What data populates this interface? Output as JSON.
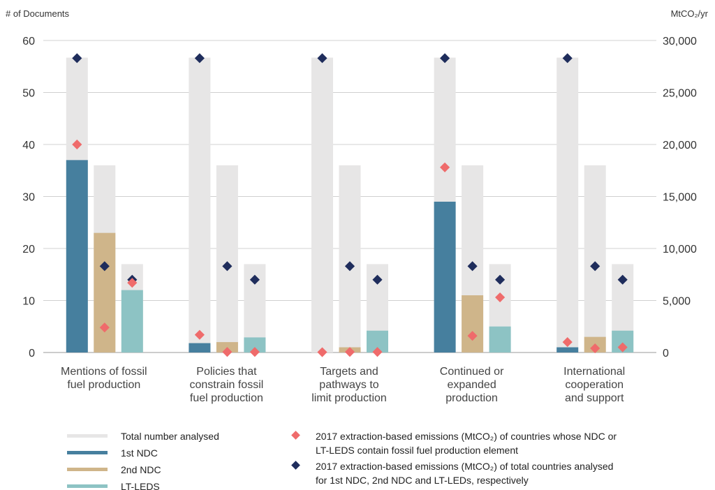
{
  "chart_data": {
    "type": "bar",
    "y_left_label": "# of Documents",
    "y_right_label": "MtCO₂/yr",
    "y_left_ticks": [
      "0",
      "10",
      "20",
      "30",
      "40",
      "50",
      "60"
    ],
    "y_right_ticks": [
      "0",
      "5,000",
      "10,000",
      "15,000",
      "20,000",
      "25,000",
      "30,000"
    ],
    "ylim_left": [
      0,
      60
    ],
    "ylim_right": [
      0,
      30000
    ],
    "grid": true,
    "categories": [
      [
        "Mentions of fossil",
        "fuel production"
      ],
      [
        "Policies that",
        "constrain fossil",
        "fuel production"
      ],
      [
        "Targets and",
        "pathways to",
        "limit production"
      ],
      [
        "Continued or",
        "expanded",
        "production"
      ],
      [
        "International",
        "cooperation",
        "and support"
      ]
    ],
    "total_analysed": [
      56.7,
      36,
      17
    ],
    "series": [
      {
        "name": "1st NDC",
        "color": "#467f9e",
        "values": [
          37,
          1.8,
          0,
          29,
          1
        ]
      },
      {
        "name": "2nd NDC",
        "color": "#cfb58a",
        "values": [
          23,
          2,
          1,
          11,
          3
        ]
      },
      {
        "name": "LT-LEDS",
        "color": "#8dc3c4",
        "values": [
          12,
          2.9,
          4.2,
          5,
          4.2
        ]
      }
    ],
    "emissions_element": {
      "name": "2017 extraction-based emissions (MtCO₂) of countries whose NDC or LT-LEDS contain fossil fuel production element",
      "color": "#ef6b6b",
      "values": [
        [
          20000,
          2400,
          6700
        ],
        [
          1700,
          50,
          50
        ],
        [
          30,
          50,
          50
        ],
        [
          17800,
          1600,
          5300
        ],
        [
          1000,
          400,
          500
        ]
      ]
    },
    "emissions_total": {
      "name": "2017 extraction-based emissions (MtCO₂) of total countries analysed for 1st NDC, 2nd NDC and LT-LEDs, respectively",
      "color": "#1f2d5c",
      "values": [
        28300,
        8300,
        7000
      ]
    },
    "legend": {
      "total": {
        "label": "Total number analysed",
        "color": "#e7e6e6"
      },
      "ndc1": "1st NDC",
      "ndc2": "2nd NDC",
      "ltleds": "LT-LEDS",
      "element_line1": "2017 extraction-based emissions (MtCO₂) of countries whose NDC or",
      "element_line2": "LT-LEDS contain fossil fuel production element",
      "total_line1": "2017 extraction-based emissions (MtCO₂) of total countries analysed",
      "total_line2": "for 1st NDC, 2nd NDC and LT-LEDs, respectively"
    }
  }
}
